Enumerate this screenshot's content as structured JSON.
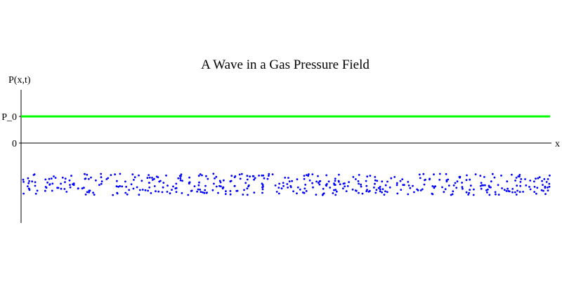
{
  "chart_data": {
    "type": "scatter",
    "title": "A Wave in a Gas Pressure Field",
    "ylabel": "P(x,t)",
    "xlabel": "x",
    "y_ticks": [
      {
        "label": "P_0",
        "value": 1.0
      },
      {
        "label": "0",
        "value": 0.0
      }
    ],
    "ylim": [
      -3.0,
      2.4
    ],
    "xlim": [
      0,
      100
    ],
    "reference_line": {
      "value": 1.0,
      "color": "#00ff00"
    },
    "particles": {
      "color": "#0000ff",
      "count": 480,
      "x_range": [
        0,
        100
      ],
      "y_band": [
        -1.95,
        -1.15
      ]
    },
    "grid": false
  }
}
